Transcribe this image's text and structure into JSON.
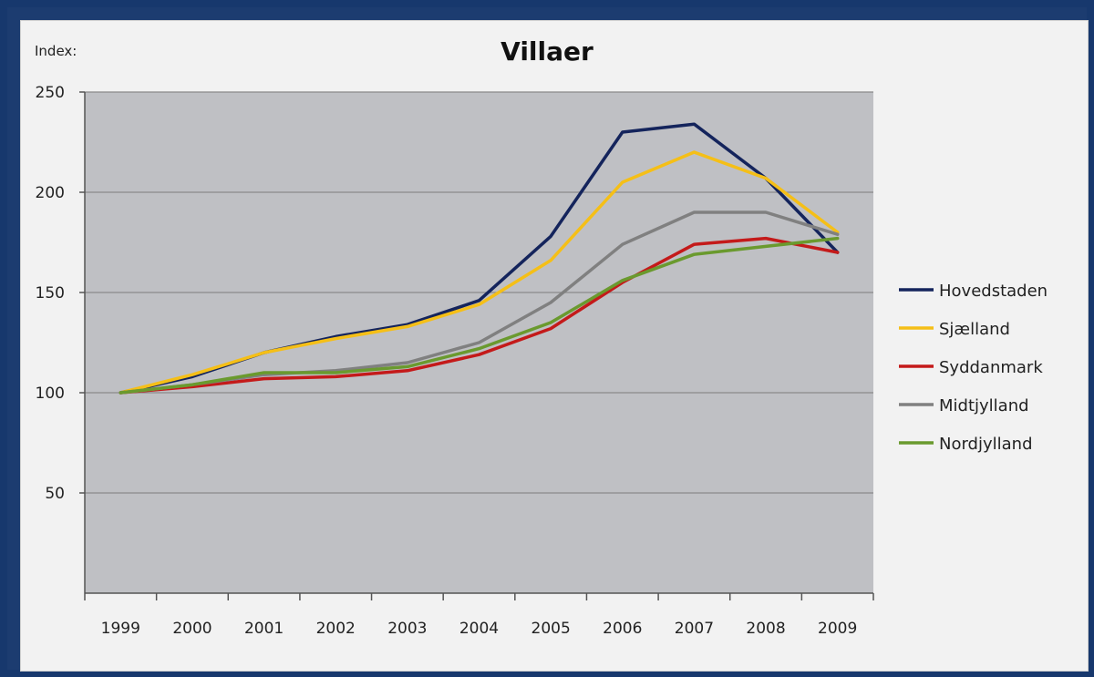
{
  "chart_data": {
    "type": "line",
    "title": "Villaer",
    "ylabel": "Index:",
    "xlabel": "",
    "categories": [
      "1999",
      "2000",
      "2001",
      "2002",
      "2003",
      "2004",
      "2005",
      "2006",
      "2007",
      "2008",
      "2009"
    ],
    "ylim": [
      0,
      250
    ],
    "yticks": [
      50,
      100,
      150,
      200,
      250
    ],
    "grid": true,
    "legend_position": "right",
    "series": [
      {
        "name": "Hovedstaden",
        "color": "#14245c",
        "values": [
          100,
          108,
          120,
          128,
          134,
          146,
          178,
          230,
          234,
          207,
          170
        ]
      },
      {
        "name": "Sjælland",
        "color": "#f5bf17",
        "values": [
          100,
          109,
          120,
          127,
          133,
          144,
          166,
          205,
          220,
          207,
          180
        ]
      },
      {
        "name": "Syddanmark",
        "color": "#c41a1a",
        "values": [
          100,
          103,
          107,
          108,
          111,
          119,
          132,
          155,
          174,
          177,
          170
        ]
      },
      {
        "name": "Midtjylland",
        "color": "#808080",
        "values": [
          100,
          104,
          109,
          111,
          115,
          125,
          145,
          174,
          190,
          190,
          179
        ]
      },
      {
        "name": "Nordjylland",
        "color": "#6a9a2e",
        "values": [
          100,
          104,
          110,
          110,
          113,
          122,
          135,
          156,
          169,
          173,
          177
        ]
      }
    ]
  }
}
